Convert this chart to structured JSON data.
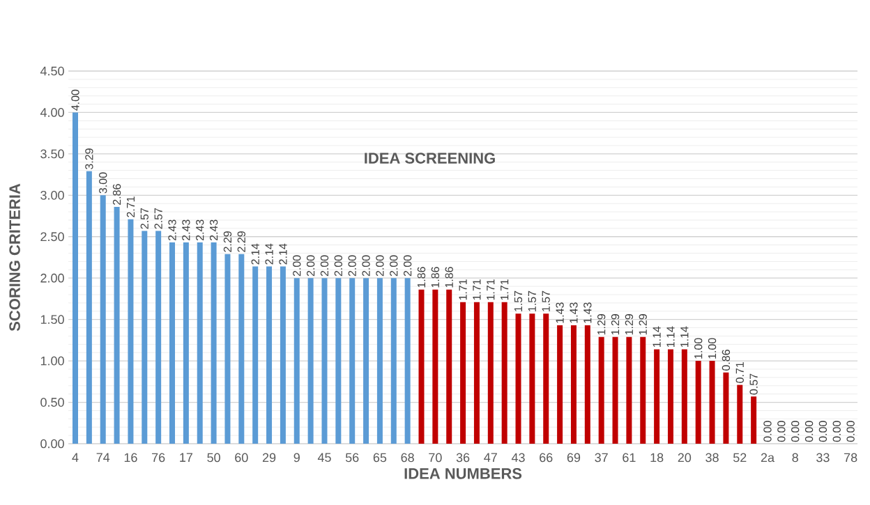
{
  "chart_data": {
    "type": "bar",
    "title": "IDEA SCREENING",
    "xlabel": "IDEA NUMBERS",
    "ylabel": "SCORING CRITERIA",
    "categories": [
      "4",
      null,
      "74",
      null,
      "16",
      null,
      "76",
      null,
      "17",
      null,
      "50",
      null,
      "60",
      null,
      "29",
      null,
      "9",
      null,
      "45",
      null,
      "56",
      null,
      "65",
      null,
      "68",
      null,
      "70",
      null,
      "36",
      null,
      "47",
      null,
      "43",
      null,
      "66",
      null,
      "69",
      null,
      "37",
      null,
      "61",
      null,
      "18",
      null,
      "20",
      null,
      "38",
      null,
      "52",
      null,
      "2a",
      null,
      "8",
      null,
      "33",
      null,
      "78"
    ],
    "values": [
      4.0,
      3.29,
      3.0,
      2.86,
      2.71,
      2.57,
      2.57,
      2.43,
      2.43,
      2.43,
      2.43,
      2.29,
      2.29,
      2.14,
      2.14,
      2.14,
      2.0,
      2.0,
      2.0,
      2.0,
      2.0,
      2.0,
      2.0,
      2.0,
      2.0,
      1.86,
      1.86,
      1.86,
      1.71,
      1.71,
      1.71,
      1.71,
      1.57,
      1.57,
      1.57,
      1.43,
      1.43,
      1.43,
      1.29,
      1.29,
      1.29,
      1.29,
      1.14,
      1.14,
      1.14,
      1.0,
      1.0,
      0.86,
      0.71,
      0.57,
      0.0,
      0.0,
      0.0,
      0.0,
      0.0,
      0.0,
      0.0
    ],
    "value_labels": [
      "4.00",
      "3.29",
      "3.00",
      "2.86",
      "2.71",
      "2.57",
      "2.57",
      "2.43",
      "2.43",
      "2.43",
      "2.43",
      "2.29",
      "2.29",
      "2.14",
      "2.14",
      "2.14",
      "2.00",
      "2.00",
      "2.00",
      "2.00",
      "2.00",
      "2.00",
      "2.00",
      "2.00",
      "2.00",
      "1.86",
      "1.86",
      "1.86",
      "1.71",
      "1.71",
      "1.71",
      "1.71",
      "1.57",
      "1.57",
      "1.57",
      "1.43",
      "1.43",
      "1.43",
      "1.29",
      "1.29",
      "1.29",
      "1.29",
      "1.14",
      "1.14",
      "1.14",
      "1.00",
      "1.00",
      "0.86",
      "0.71",
      "0.57",
      "0.00",
      "0.00",
      "0.00",
      "0.00",
      "0.00",
      "0.00",
      "0.00"
    ],
    "colors": [
      "#5b9bd5",
      "#5b9bd5",
      "#5b9bd5",
      "#5b9bd5",
      "#5b9bd5",
      "#5b9bd5",
      "#5b9bd5",
      "#5b9bd5",
      "#5b9bd5",
      "#5b9bd5",
      "#5b9bd5",
      "#5b9bd5",
      "#5b9bd5",
      "#5b9bd5",
      "#5b9bd5",
      "#5b9bd5",
      "#5b9bd5",
      "#5b9bd5",
      "#5b9bd5",
      "#5b9bd5",
      "#5b9bd5",
      "#5b9bd5",
      "#5b9bd5",
      "#5b9bd5",
      "#5b9bd5",
      "#c00000",
      "#c00000",
      "#c00000",
      "#c00000",
      "#c00000",
      "#c00000",
      "#c00000",
      "#c00000",
      "#c00000",
      "#c00000",
      "#c00000",
      "#c00000",
      "#c00000",
      "#c00000",
      "#c00000",
      "#c00000",
      "#c00000",
      "#c00000",
      "#c00000",
      "#c00000",
      "#c00000",
      "#c00000",
      "#c00000",
      "#c00000",
      "#c00000",
      "#c00000",
      "#c00000",
      "#c00000",
      "#c00000",
      "#c00000",
      "#c00000",
      "#c00000"
    ],
    "ylim": [
      0,
      4.5
    ],
    "yticks": [
      {
        "value": 0,
        "label": "0.00"
      },
      {
        "value": 0.5,
        "label": "0.50"
      },
      {
        "value": 1,
        "label": "1.00"
      },
      {
        "value": 1.5,
        "label": "1.50"
      },
      {
        "value": 2,
        "label": "2.00"
      },
      {
        "value": 2.5,
        "label": "2.50"
      },
      {
        "value": 3,
        "label": "3.00"
      },
      {
        "value": 3.5,
        "label": "3.50"
      },
      {
        "value": 4,
        "label": "4.00"
      },
      {
        "value": 4.5,
        "label": "4.50"
      }
    ],
    "grid": "y"
  }
}
